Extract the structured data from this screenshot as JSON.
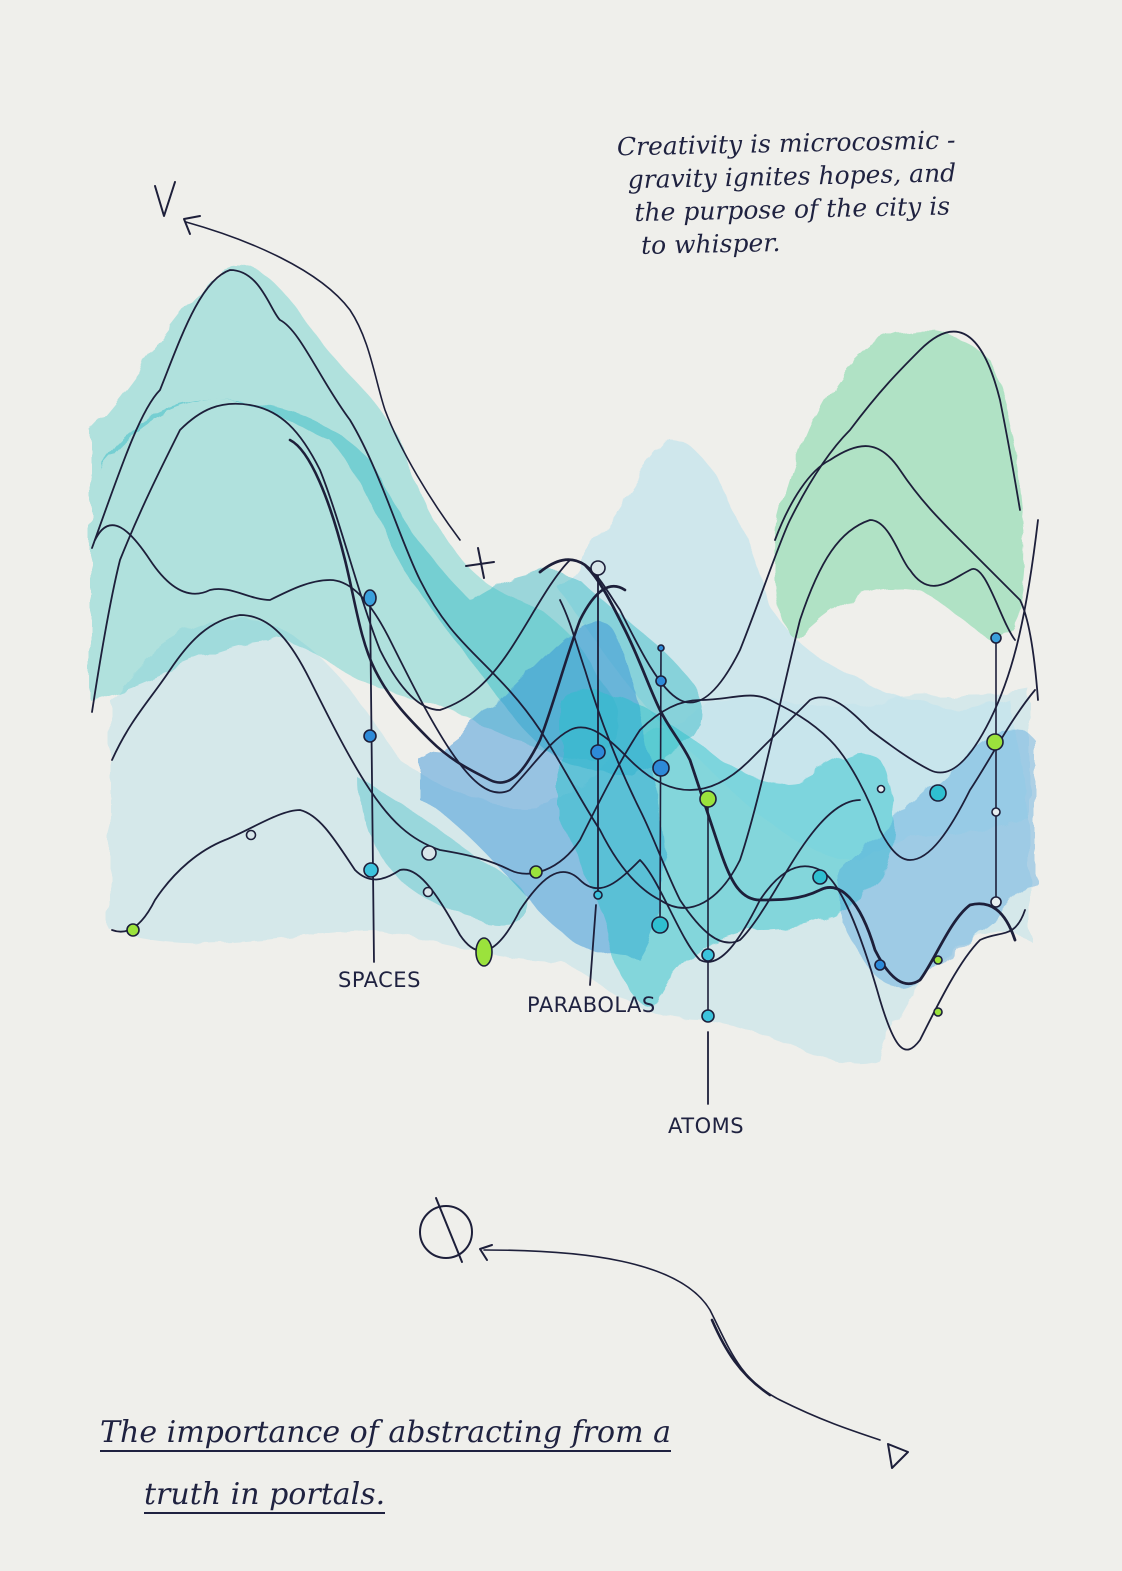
{
  "quote_lines": [
    "Creativity is microcosmic -",
    "gravity ignites hopes, and",
    "the purpose of the city is",
    "to whisper."
  ],
  "caption_lines": [
    "The importance of abstracting from a",
    "truth in portals."
  ],
  "labels": {
    "spaces": "SPACES",
    "parabolas": "PARABOLAS",
    "atoms": "ATOMS"
  },
  "palette": {
    "ink": "#1d1f3a",
    "teal": "#2cc4c9",
    "blue": "#3b8fd8",
    "pale": "#a8d6e3",
    "mint": "#8fdcb0",
    "lime": "#9be23c",
    "paper": "#efefeb"
  }
}
